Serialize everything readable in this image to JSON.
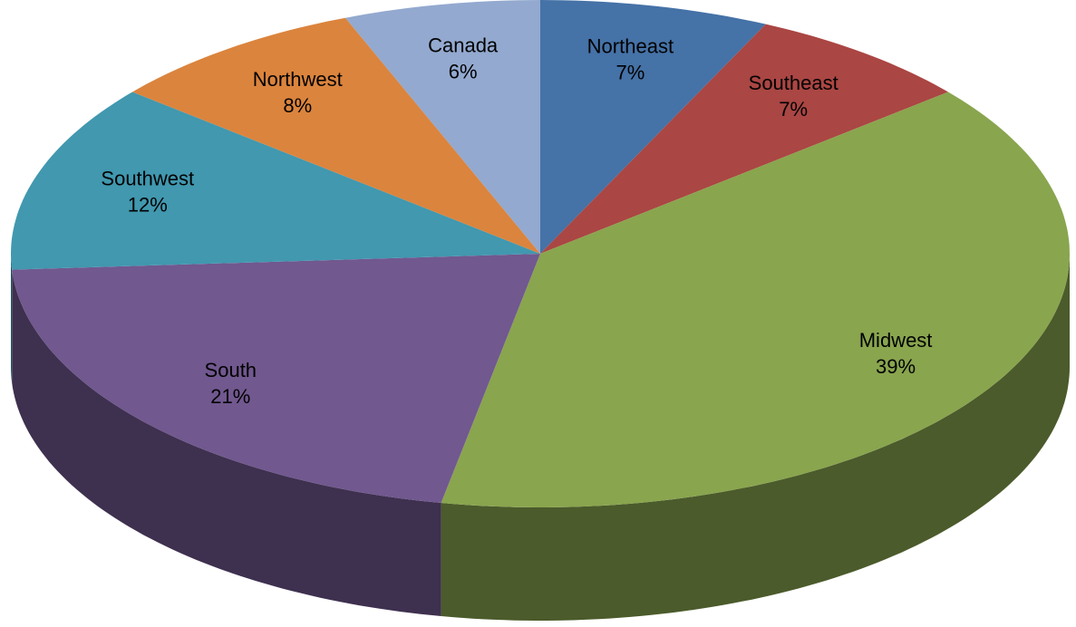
{
  "chart_data": {
    "type": "pie",
    "categories": [
      "Northeast",
      "Southeast",
      "Midwest",
      "South",
      "Southwest",
      "Northwest",
      "Canada"
    ],
    "values": [
      7,
      7,
      39,
      21,
      12,
      8,
      6
    ],
    "value_labels": [
      "7%",
      "7%",
      "39%",
      "21%",
      "12%",
      "8%",
      "6%"
    ],
    "colors": [
      "#4572a7",
      "#aa4643",
      "#89a54e",
      "#71588f",
      "#4198af",
      "#db843d",
      "#93a9cf"
    ]
  }
}
